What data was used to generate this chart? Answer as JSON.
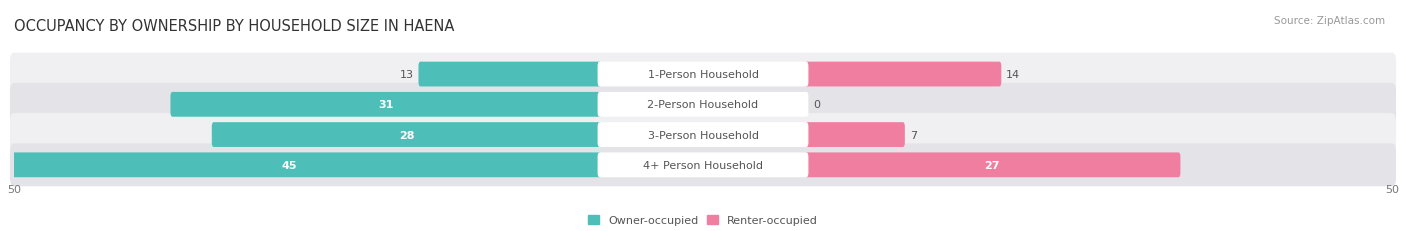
{
  "title": "OCCUPANCY BY OWNERSHIP BY HOUSEHOLD SIZE IN HAENA",
  "source": "Source: ZipAtlas.com",
  "categories": [
    "1-Person Household",
    "2-Person Household",
    "3-Person Household",
    "4+ Person Household"
  ],
  "owner_values": [
    13,
    31,
    28,
    45
  ],
  "renter_values": [
    14,
    0,
    7,
    27
  ],
  "owner_color": "#4DBFB8",
  "renter_color": "#F07EA0",
  "row_bg_light": "#F0F0F2",
  "row_bg_dark": "#E4E4E8",
  "max_val": 50,
  "title_fontsize": 10.5,
  "source_fontsize": 7.5,
  "value_fontsize": 8,
  "label_fontsize": 8,
  "tick_fontsize": 8,
  "legend_fontsize": 8,
  "figsize": [
    14.06,
    2.32
  ],
  "dpi": 100
}
